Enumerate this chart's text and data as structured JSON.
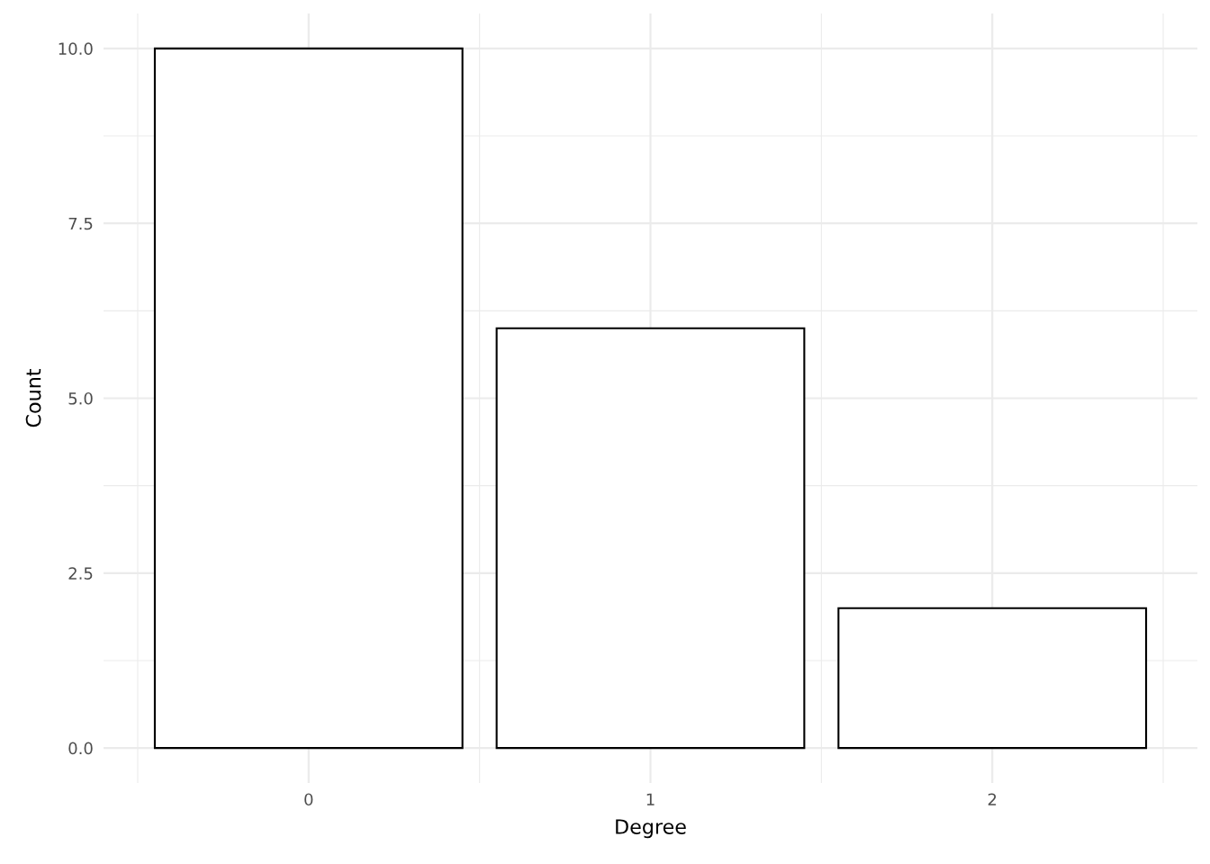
{
  "chart_data": {
    "type": "bar",
    "xlabel": "Degree",
    "ylabel": "Count",
    "categories": [
      "0",
      "1",
      "2"
    ],
    "series": [
      {
        "color": "#ffffff",
        "values": [
          10,
          6,
          2
        ]
      }
    ],
    "ylim": [
      -0.5,
      10.5
    ],
    "yticks": [
      {
        "value": 0,
        "label": "0.0"
      },
      {
        "value": 2.5,
        "label": "2.5"
      },
      {
        "value": 5,
        "label": "5.0"
      },
      {
        "value": 7.5,
        "label": "7.5"
      },
      {
        "value": 10,
        "label": "10.0"
      }
    ],
    "grid": true
  }
}
